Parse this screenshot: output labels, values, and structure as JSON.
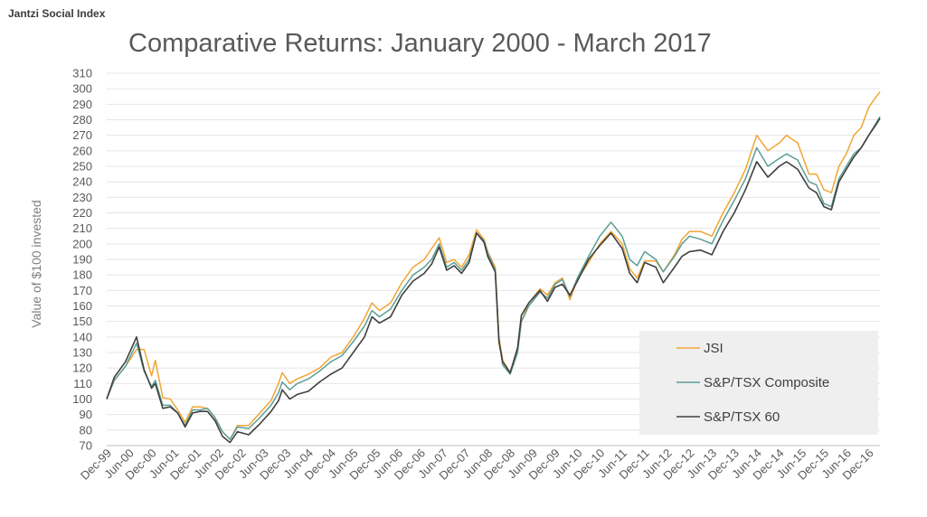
{
  "header": {
    "brand": "Jantzi Social Index",
    "title": "Comparative Returns: January 2000 - March 2017"
  },
  "chart_data": {
    "type": "line",
    "title": "Comparative Returns: January 2000 - March 2017",
    "xlabel": "",
    "ylabel": "Value of $100 invested",
    "ylim": [
      70,
      310
    ],
    "xlim": [
      "1999-12",
      "2017-03"
    ],
    "grid": true,
    "legend_position": "bottom-right",
    "y_ticks": [
      70,
      80,
      90,
      100,
      110,
      120,
      130,
      140,
      150,
      160,
      170,
      180,
      190,
      200,
      210,
      220,
      230,
      240,
      250,
      260,
      270,
      280,
      290,
      300,
      310
    ],
    "x_tick_labels": [
      "Dec-99",
      "Jun-00",
      "Dec-00",
      "Jun-01",
      "Dec-01",
      "Jun-02",
      "Dec-02",
      "Jun-03",
      "Dec-03",
      "Jun-04",
      "Dec-04",
      "Jun-05",
      "Dec-05",
      "Jun-06",
      "Dec-06",
      "Jun-07",
      "Dec-07",
      "Jun-08",
      "Dec-08",
      "Jun-09",
      "Dec-09",
      "Jun-10",
      "Dec-10",
      "Jun-11",
      "Dec-11",
      "Jun-12",
      "Dec-12",
      "Jun-13",
      "Dec-13",
      "Jun-14",
      "Dec-14",
      "Jun-15",
      "Dec-15",
      "Jun-16",
      "Dec-16"
    ],
    "series": [
      {
        "name": "JSI",
        "color": "#f2a535",
        "points": [
          [
            "1999-12",
            100
          ],
          [
            "2000-02",
            112
          ],
          [
            "2000-05",
            121
          ],
          [
            "2000-08",
            132
          ],
          [
            "2000-10",
            132
          ],
          [
            "2000-12",
            115
          ],
          [
            "2001-01",
            125
          ],
          [
            "2001-03",
            101
          ],
          [
            "2001-05",
            100
          ],
          [
            "2001-07",
            93
          ],
          [
            "2001-09",
            85
          ],
          [
            "2001-11",
            95
          ],
          [
            "2002-01",
            95
          ],
          [
            "2002-03",
            94
          ],
          [
            "2002-05",
            88
          ],
          [
            "2002-07",
            79
          ],
          [
            "2002-09",
            74
          ],
          [
            "2002-11",
            83
          ],
          [
            "2003-02",
            83
          ],
          [
            "2003-05",
            91
          ],
          [
            "2003-08",
            99
          ],
          [
            "2003-10",
            110
          ],
          [
            "2003-11",
            117
          ],
          [
            "2004-01",
            110
          ],
          [
            "2004-03",
            113
          ],
          [
            "2004-06",
            116
          ],
          [
            "2004-09",
            120
          ],
          [
            "2004-12",
            127
          ],
          [
            "2005-03",
            130
          ],
          [
            "2005-06",
            140
          ],
          [
            "2005-09",
            152
          ],
          [
            "2005-11",
            162
          ],
          [
            "2006-01",
            157
          ],
          [
            "2006-04",
            162
          ],
          [
            "2006-07",
            175
          ],
          [
            "2006-10",
            185
          ],
          [
            "2007-01",
            190
          ],
          [
            "2007-03",
            197
          ],
          [
            "2007-05",
            204
          ],
          [
            "2007-07",
            188
          ],
          [
            "2007-09",
            190
          ],
          [
            "2007-11",
            185
          ],
          [
            "2008-01",
            193
          ],
          [
            "2008-03",
            209
          ],
          [
            "2008-05",
            203
          ],
          [
            "2008-06",
            195
          ],
          [
            "2008-08",
            185
          ],
          [
            "2008-09",
            140
          ],
          [
            "2008-10",
            125
          ],
          [
            "2008-12",
            117
          ],
          [
            "2009-02",
            132
          ],
          [
            "2009-03",
            150
          ],
          [
            "2009-05",
            162
          ],
          [
            "2009-08",
            171
          ],
          [
            "2009-10",
            167
          ],
          [
            "2009-12",
            175
          ],
          [
            "2010-02",
            178
          ],
          [
            "2010-04",
            164
          ],
          [
            "2010-06",
            177
          ],
          [
            "2010-09",
            188
          ],
          [
            "2010-12",
            200
          ],
          [
            "2011-03",
            208
          ],
          [
            "2011-06",
            200
          ],
          [
            "2011-08",
            184
          ],
          [
            "2011-10",
            178
          ],
          [
            "2011-12",
            189
          ],
          [
            "2012-03",
            189
          ],
          [
            "2012-05",
            182
          ],
          [
            "2012-08",
            193
          ],
          [
            "2012-10",
            203
          ],
          [
            "2012-12",
            208
          ],
          [
            "2013-03",
            208
          ],
          [
            "2013-06",
            205
          ],
          [
            "2013-09",
            220
          ],
          [
            "2013-12",
            233
          ],
          [
            "2014-03",
            248
          ],
          [
            "2014-06",
            270
          ],
          [
            "2014-09",
            260
          ],
          [
            "2014-12",
            265
          ],
          [
            "2015-02",
            270
          ],
          [
            "2015-05",
            265
          ],
          [
            "2015-08",
            245
          ],
          [
            "2015-10",
            245
          ],
          [
            "2015-12",
            235
          ],
          [
            "2016-02",
            233
          ],
          [
            "2016-04",
            250
          ],
          [
            "2016-06",
            258
          ],
          [
            "2016-08",
            270
          ],
          [
            "2016-10",
            275
          ],
          [
            "2016-12",
            288
          ],
          [
            "2017-02",
            295
          ],
          [
            "2017-03",
            298
          ]
        ]
      },
      {
        "name": "S&P/TSX Composite",
        "color": "#5b9e96",
        "points": [
          [
            "1999-12",
            100
          ],
          [
            "2000-02",
            112
          ],
          [
            "2000-05",
            121
          ],
          [
            "2000-08",
            136
          ],
          [
            "2000-10",
            118
          ],
          [
            "2000-12",
            108
          ],
          [
            "2001-01",
            112
          ],
          [
            "2001-03",
            96
          ],
          [
            "2001-05",
            96
          ],
          [
            "2001-07",
            91
          ],
          [
            "2001-09",
            83
          ],
          [
            "2001-11",
            93
          ],
          [
            "2002-01",
            93
          ],
          [
            "2002-03",
            94
          ],
          [
            "2002-05",
            88
          ],
          [
            "2002-07",
            79
          ],
          [
            "2002-09",
            74
          ],
          [
            "2002-11",
            82
          ],
          [
            "2003-02",
            81
          ],
          [
            "2003-05",
            88
          ],
          [
            "2003-08",
            96
          ],
          [
            "2003-10",
            104
          ],
          [
            "2003-11",
            111
          ],
          [
            "2004-01",
            106
          ],
          [
            "2004-03",
            110
          ],
          [
            "2004-06",
            113
          ],
          [
            "2004-09",
            118
          ],
          [
            "2004-12",
            124
          ],
          [
            "2005-03",
            128
          ],
          [
            "2005-06",
            137
          ],
          [
            "2005-09",
            147
          ],
          [
            "2005-11",
            157
          ],
          [
            "2006-01",
            153
          ],
          [
            "2006-04",
            158
          ],
          [
            "2006-07",
            170
          ],
          [
            "2006-10",
            180
          ],
          [
            "2007-01",
            185
          ],
          [
            "2007-03",
            190
          ],
          [
            "2007-05",
            200
          ],
          [
            "2007-07",
            185
          ],
          [
            "2007-09",
            188
          ],
          [
            "2007-11",
            183
          ],
          [
            "2008-01",
            190
          ],
          [
            "2008-03",
            207
          ],
          [
            "2008-05",
            202
          ],
          [
            "2008-06",
            194
          ],
          [
            "2008-08",
            183
          ],
          [
            "2008-09",
            138
          ],
          [
            "2008-10",
            122
          ],
          [
            "2008-12",
            116
          ],
          [
            "2009-02",
            130
          ],
          [
            "2009-03",
            150
          ],
          [
            "2009-05",
            160
          ],
          [
            "2009-08",
            169
          ],
          [
            "2009-10",
            165
          ],
          [
            "2009-12",
            174
          ],
          [
            "2010-02",
            177
          ],
          [
            "2010-04",
            166
          ],
          [
            "2010-06",
            178
          ],
          [
            "2010-09",
            192
          ],
          [
            "2010-12",
            205
          ],
          [
            "2011-03",
            214
          ],
          [
            "2011-06",
            205
          ],
          [
            "2011-08",
            190
          ],
          [
            "2011-10",
            186
          ],
          [
            "2011-12",
            195
          ],
          [
            "2012-03",
            190
          ],
          [
            "2012-05",
            182
          ],
          [
            "2012-08",
            192
          ],
          [
            "2012-10",
            200
          ],
          [
            "2012-12",
            205
          ],
          [
            "2013-03",
            203
          ],
          [
            "2013-06",
            200
          ],
          [
            "2013-09",
            215
          ],
          [
            "2013-12",
            228
          ],
          [
            "2014-03",
            242
          ],
          [
            "2014-06",
            262
          ],
          [
            "2014-09",
            250
          ],
          [
            "2014-12",
            255
          ],
          [
            "2015-02",
            258
          ],
          [
            "2015-05",
            254
          ],
          [
            "2015-08",
            240
          ],
          [
            "2015-10",
            238
          ],
          [
            "2015-12",
            226
          ],
          [
            "2016-02",
            224
          ],
          [
            "2016-04",
            242
          ],
          [
            "2016-06",
            250
          ],
          [
            "2016-08",
            258
          ],
          [
            "2016-10",
            262
          ],
          [
            "2016-12",
            270
          ],
          [
            "2017-02",
            278
          ],
          [
            "2017-03",
            282
          ]
        ]
      },
      {
        "name": "S&P/TSX 60",
        "color": "#404040",
        "points": [
          [
            "1999-12",
            100
          ],
          [
            "2000-02",
            114
          ],
          [
            "2000-05",
            124
          ],
          [
            "2000-08",
            140
          ],
          [
            "2000-10",
            119
          ],
          [
            "2000-12",
            107
          ],
          [
            "2001-01",
            110
          ],
          [
            "2001-03",
            94
          ],
          [
            "2001-05",
            95
          ],
          [
            "2001-07",
            91
          ],
          [
            "2001-09",
            82
          ],
          [
            "2001-11",
            91
          ],
          [
            "2002-01",
            92
          ],
          [
            "2002-03",
            92
          ],
          [
            "2002-05",
            86
          ],
          [
            "2002-07",
            76
          ],
          [
            "2002-09",
            72
          ],
          [
            "2002-11",
            79
          ],
          [
            "2003-02",
            77
          ],
          [
            "2003-05",
            84
          ],
          [
            "2003-08",
            92
          ],
          [
            "2003-10",
            99
          ],
          [
            "2003-11",
            106
          ],
          [
            "2004-01",
            100
          ],
          [
            "2004-03",
            103
          ],
          [
            "2004-06",
            105
          ],
          [
            "2004-09",
            111
          ],
          [
            "2004-12",
            116
          ],
          [
            "2005-03",
            120
          ],
          [
            "2005-06",
            130
          ],
          [
            "2005-09",
            140
          ],
          [
            "2005-11",
            153
          ],
          [
            "2006-01",
            149
          ],
          [
            "2006-04",
            153
          ],
          [
            "2006-07",
            167
          ],
          [
            "2006-10",
            176
          ],
          [
            "2007-01",
            181
          ],
          [
            "2007-03",
            187
          ],
          [
            "2007-05",
            198
          ],
          [
            "2007-07",
            183
          ],
          [
            "2007-09",
            186
          ],
          [
            "2007-11",
            181
          ],
          [
            "2008-01",
            188
          ],
          [
            "2008-03",
            207
          ],
          [
            "2008-05",
            201
          ],
          [
            "2008-06",
            192
          ],
          [
            "2008-08",
            182
          ],
          [
            "2008-09",
            137
          ],
          [
            "2008-10",
            124
          ],
          [
            "2008-12",
            117
          ],
          [
            "2009-02",
            133
          ],
          [
            "2009-03",
            154
          ],
          [
            "2009-05",
            162
          ],
          [
            "2009-08",
            170
          ],
          [
            "2009-10",
            163
          ],
          [
            "2009-12",
            172
          ],
          [
            "2010-02",
            174
          ],
          [
            "2010-04",
            167
          ],
          [
            "2010-06",
            176
          ],
          [
            "2010-09",
            190
          ],
          [
            "2010-12",
            199
          ],
          [
            "2011-03",
            207
          ],
          [
            "2011-06",
            197
          ],
          [
            "2011-08",
            181
          ],
          [
            "2011-10",
            175
          ],
          [
            "2011-12",
            188
          ],
          [
            "2012-03",
            185
          ],
          [
            "2012-05",
            175
          ],
          [
            "2012-08",
            185
          ],
          [
            "2012-10",
            192
          ],
          [
            "2012-12",
            195
          ],
          [
            "2013-03",
            196
          ],
          [
            "2013-06",
            193
          ],
          [
            "2013-09",
            208
          ],
          [
            "2013-12",
            220
          ],
          [
            "2014-03",
            235
          ],
          [
            "2014-06",
            253
          ],
          [
            "2014-09",
            243
          ],
          [
            "2014-12",
            250
          ],
          [
            "2015-02",
            253
          ],
          [
            "2015-05",
            248
          ],
          [
            "2015-08",
            236
          ],
          [
            "2015-10",
            233
          ],
          [
            "2015-12",
            224
          ],
          [
            "2016-02",
            222
          ],
          [
            "2016-04",
            240
          ],
          [
            "2016-06",
            248
          ],
          [
            "2016-08",
            256
          ],
          [
            "2016-10",
            262
          ],
          [
            "2016-12",
            270
          ],
          [
            "2017-02",
            277
          ],
          [
            "2017-03",
            281
          ]
        ]
      }
    ]
  }
}
